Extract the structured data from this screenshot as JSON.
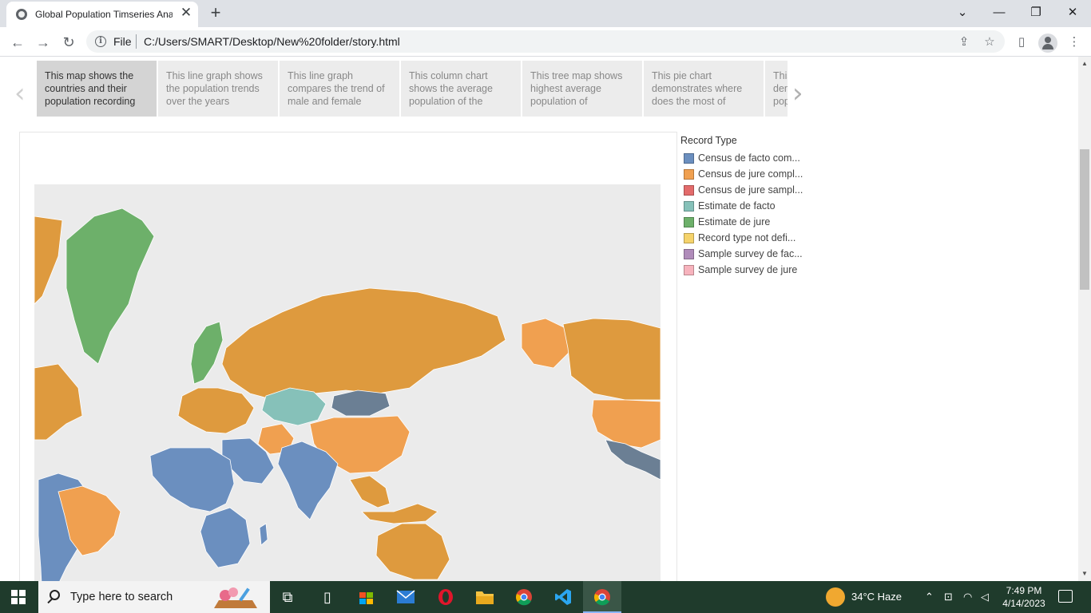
{
  "browser": {
    "tab_title": "Global Population Timseries Anal",
    "tab_close": "✕",
    "new_tab": "+",
    "window": {
      "minimize": "—",
      "restore": "❐",
      "close": "✕",
      "tab_search": "⌄"
    },
    "address": {
      "scheme": "File",
      "url": "C:/Users/SMART/Desktop/New%20folder/story.html"
    },
    "nav": {
      "back": "←",
      "forward": "→",
      "reload": "↻"
    },
    "toolbar": {
      "share": "⇪",
      "bookmark": "☆",
      "sidepanel": "▯",
      "menu": "⋮"
    }
  },
  "story": {
    "prev": "‹",
    "next": "›",
    "points": [
      {
        "caption": "This map shows the countries and their population recording",
        "active": true
      },
      {
        "caption": "This line graph shows the population trends over the years",
        "active": false
      },
      {
        "caption": "This line graph compares the trend of male and female",
        "active": false
      },
      {
        "caption": "This column chart shows the average population of the",
        "active": false
      },
      {
        "caption": "This tree map shows highest  average population of",
        "active": false
      },
      {
        "caption": "This pie chart demonstrates where does the most of",
        "active": false
      },
      {
        "caption": "This chart demonstrates population",
        "active": false
      }
    ]
  },
  "legend": {
    "title": "Record Type",
    "items": [
      {
        "label": "Census de facto com...",
        "color": "#6b8fbf"
      },
      {
        "label": "Census de jure compl...",
        "color": "#f0a050"
      },
      {
        "label": "Census de jure sampl...",
        "color": "#e36b6b"
      },
      {
        "label": "Estimate de facto",
        "color": "#86c1b9"
      },
      {
        "label": "Estimate de jure",
        "color": "#6db06a"
      },
      {
        "label": "Record type not defi...",
        "color": "#f5d36b"
      },
      {
        "label": "Sample survey de fac...",
        "color": "#b08cba"
      },
      {
        "label": "Sample survey de jure",
        "color": "#f7b3bd"
      }
    ]
  },
  "map": {
    "ocean_color": "#ebebeb",
    "regions": [
      {
        "name": "greenland",
        "color": "#6db06a"
      },
      {
        "name": "north-america-west",
        "color": "#de9a3e"
      },
      {
        "name": "russia",
        "color": "#de9a3e"
      },
      {
        "name": "kazakhstan",
        "color": "#86c1b9"
      },
      {
        "name": "mongolia",
        "color": "#6b7f94"
      },
      {
        "name": "china",
        "color": "#f0a050"
      },
      {
        "name": "india",
        "color": "#6b8fbf"
      },
      {
        "name": "middle-east",
        "color": "#6b8fbf"
      },
      {
        "name": "iran",
        "color": "#f0a050"
      },
      {
        "name": "europe",
        "color": "#de9a3e"
      },
      {
        "name": "scandinavia",
        "color": "#6db06a"
      },
      {
        "name": "africa-north",
        "color": "#6b8fbf"
      },
      {
        "name": "africa-south",
        "color": "#6b8fbf"
      },
      {
        "name": "south-america",
        "color": "#6b8fbf"
      },
      {
        "name": "brazil",
        "color": "#f0a050"
      },
      {
        "name": "australia",
        "color": "#de9a3e"
      },
      {
        "name": "southeast-asia",
        "color": "#de9a3e"
      },
      {
        "name": "alaska",
        "color": "#f0a050"
      },
      {
        "name": "canada",
        "color": "#de9a3e"
      },
      {
        "name": "usa",
        "color": "#f0a050"
      },
      {
        "name": "mexico",
        "color": "#6b7f94"
      }
    ]
  },
  "taskbar": {
    "search_placeholder": "Type here to search",
    "weather": "34°C  Haze",
    "time": "7:49 PM",
    "date": "4/14/2023"
  }
}
